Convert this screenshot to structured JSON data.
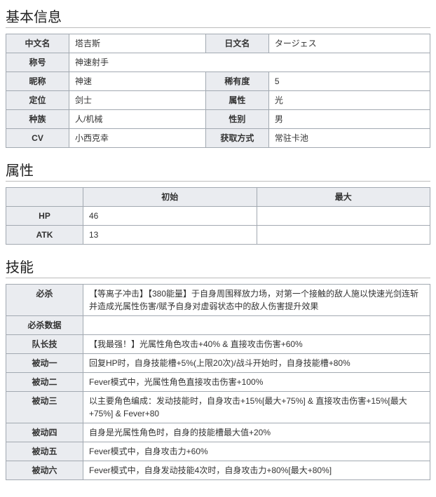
{
  "sections": {
    "basic": {
      "title": "基本信息"
    },
    "stats": {
      "title": "属性"
    },
    "skills": {
      "title": "技能"
    }
  },
  "basic": {
    "name_zh_label": "中文名",
    "name_zh": "塔吉斯",
    "name_jp_label": "日文名",
    "name_jp": "タージェス",
    "title_label": "称号",
    "title": "神速射手",
    "nickname_label": "昵称",
    "nickname": "神速",
    "rarity_label": "稀有度",
    "rarity": "5",
    "role_label": "定位",
    "role": "剑士",
    "element_label": "属性",
    "element": "光",
    "race_label": "种族",
    "race": "人/机械",
    "gender_label": "性别",
    "gender": "男",
    "cv_label": "CV",
    "cv": "小西克幸",
    "obtain_label": "获取方式",
    "obtain": "常驻卡池"
  },
  "stats": {
    "col_initial": "初始",
    "col_max": "最大",
    "hp_label": "HP",
    "hp_initial": "46",
    "hp_max": "",
    "atk_label": "ATK",
    "atk_initial": "13",
    "atk_max": ""
  },
  "skills": {
    "ultimate_label": "必杀",
    "ultimate": "【等离子冲击】【380能量】于自身周围释放力场，对第一个接触的敌人施以快速光剑连斩并造成光属性伤害/赋予自身对虚弱状态中的敌人伤害提升效果",
    "ultimate_data_label": "必杀数据",
    "ultimate_data": "",
    "leader_label": "队长技",
    "leader": "【我最强！】光属性角色攻击+40% & 直接攻击伤害+60%",
    "p1_label": "被动一",
    "p1": "回复HP时，自身技能槽+5%(上限20次)/战斗开始时，自身技能槽+80%",
    "p2_label": "被动二",
    "p2": "Fever模式中，光属性角色直接攻击伤害+100%",
    "p3_label": "被动三",
    "p3": "以主要角色编成：发动技能时，自身攻击+15%[最大+75%] & 直接攻击伤害+15%[最大+75%] & Fever+80",
    "p4_label": "被动四",
    "p4": "自身是光属性角色时，自身的技能槽最大值+20%",
    "p5_label": "被动五",
    "p5": "Fever模式中，自身攻击力+60%",
    "p6_label": "被动六",
    "p6": "Fever模式中，自身发动技能4次时，自身攻击力+80%[最大+80%]"
  }
}
